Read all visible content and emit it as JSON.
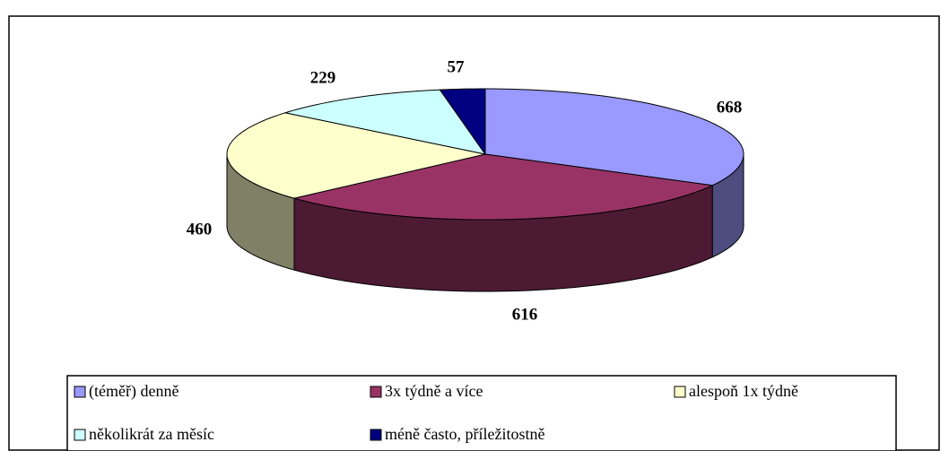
{
  "chart_data": {
    "type": "pie",
    "categories": [
      "(téměř) denně",
      "3x týdně a více",
      "alespoň 1x týdně",
      "několikrát za měsíc",
      "méně často, příležitostně"
    ],
    "values": [
      668,
      616,
      460,
      229,
      57
    ],
    "colors": [
      "#9999ff",
      "#993366",
      "#ffffcc",
      "#ccffff",
      "#000080"
    ],
    "legend": "bottom"
  }
}
